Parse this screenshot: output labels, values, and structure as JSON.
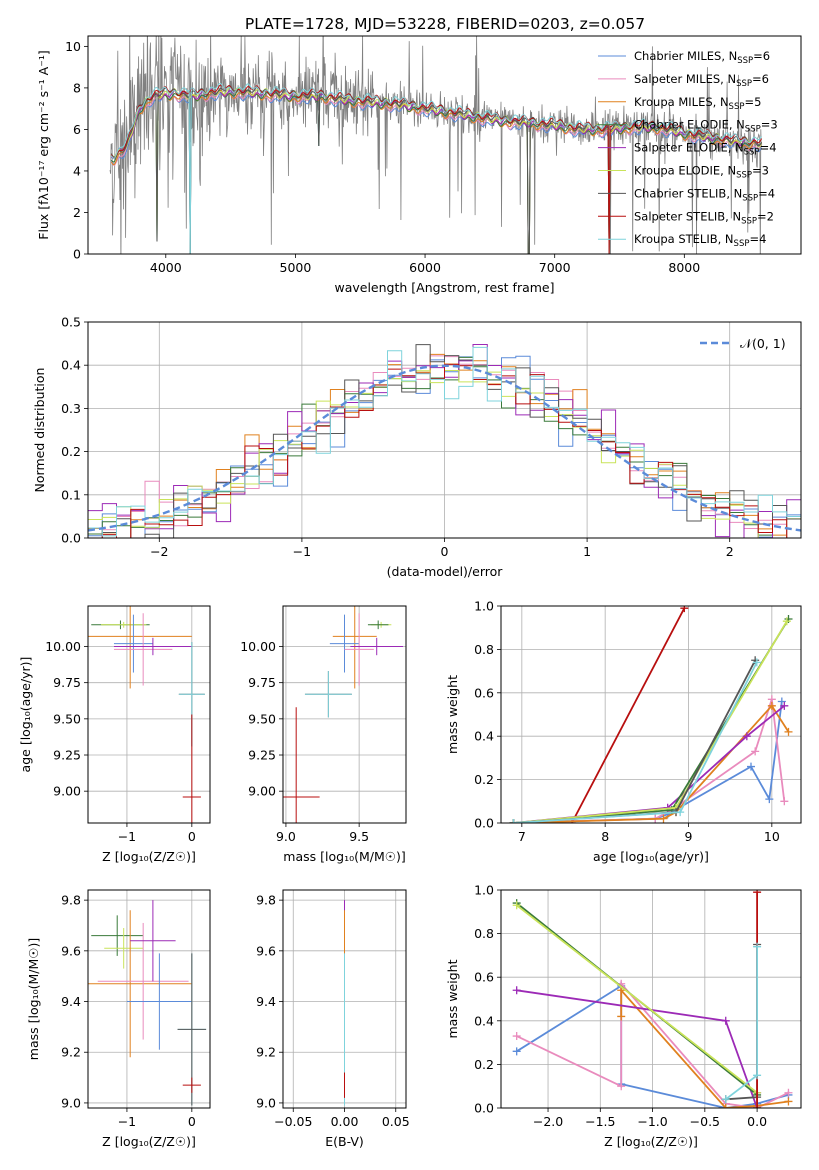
{
  "title": "PLATE=1728, MJD=53228, FIBERID=0203, z=0.057",
  "colors": {
    "Chabrier MILES": "#5b8bd9",
    "Salpeter MILES": "#e98bbd",
    "Kroupa MILES": "#e0811f",
    "Chabrier ELODIE": "#3a7a3a",
    "Salpeter ELODIE": "#9c2ab6",
    "Kroupa ELODIE": "#c9e35a",
    "Chabrier STELIB": "#555555",
    "Salpeter STELIB": "#b80f0f",
    "Kroupa STELIB": "#7fd3dc",
    "data": "#808080",
    "normal": "#5b8bd9"
  },
  "chart_data": [
    {
      "id": "spectrum",
      "type": "line",
      "title": "PLATE=1728, MJD=53228, FIBERID=0203, z=0.057",
      "xlabel": "wavelength [Angstrom, rest frame]",
      "ylabel": "Flux [fλ10⁻¹⁷ erg cm⁻² s⁻¹ A⁻¹]",
      "xlim": [
        3400,
        8900
      ],
      "ylim": [
        0,
        10.5
      ],
      "xticks": [
        4000,
        5000,
        6000,
        7000,
        8000
      ],
      "yticks": [
        0,
        2,
        4,
        6,
        8,
        10
      ],
      "legend_position": "top-right",
      "legend": [
        {
          "label": "Chabrier MILES, N",
          "sub": "SSP",
          "tail": "=6"
        },
        {
          "label": "Salpeter MILES, N",
          "sub": "SSP",
          "tail": "=6"
        },
        {
          "label": "Kroupa MILES, N",
          "sub": "SSP",
          "tail": "=5"
        },
        {
          "label": "Chabrier ELODIE, N",
          "sub": "SSP",
          "tail": "=3"
        },
        {
          "label": "Salpeter ELODIE, N",
          "sub": "SSP",
          "tail": "=4"
        },
        {
          "label": "Kroupa ELODIE, N",
          "sub": "SSP",
          "tail": "=3"
        },
        {
          "label": "Chabrier STELIB, N",
          "sub": "SSP",
          "tail": "=4"
        },
        {
          "label": "Salpeter STELIB, N",
          "sub": "SSP",
          "tail": "=2"
        },
        {
          "label": "Kroupa STELIB, N",
          "sub": "SSP",
          "tail": "=4"
        }
      ],
      "continuum_x": [
        3600,
        3700,
        3800,
        3900,
        4000,
        4100,
        4200,
        4400,
        4600,
        4800,
        5000,
        5200,
        5400,
        5600,
        5800,
        6000,
        6200,
        6400,
        6600,
        6800,
        7000,
        7200,
        7400,
        7600,
        7800,
        8000,
        8200,
        8400,
        8600
      ],
      "continuum_y": [
        4.6,
        5.2,
        7.0,
        7.6,
        7.7,
        7.7,
        7.6,
        7.8,
        7.8,
        7.7,
        7.6,
        7.6,
        7.4,
        7.3,
        7.2,
        7.0,
        6.8,
        6.6,
        6.4,
        6.3,
        6.2,
        6.0,
        6.0,
        6.1,
        6.1,
        5.8,
        5.6,
        5.4,
        5.3
      ],
      "dips": [
        [
          3930,
          0.6
        ],
        [
          4190,
          0.0
        ],
        [
          5180,
          5.2
        ],
        [
          6800,
          0.0
        ],
        [
          7420,
          0.0
        ]
      ]
    },
    {
      "id": "residuals",
      "type": "step",
      "xlabel": "(data-model)/error",
      "ylabel": "Normed distribution",
      "xlim": [
        -2.5,
        2.5
      ],
      "ylim": [
        0,
        0.5
      ],
      "xticks": [
        -2,
        -1,
        0,
        1,
        2
      ],
      "yticks": [
        0.0,
        0.1,
        0.2,
        0.3,
        0.4,
        0.5
      ],
      "legend_position": "top-right",
      "legend_label": "𝒩(0, 1)",
      "bin_width": 0.1
    },
    {
      "id": "age-vs-Z",
      "type": "errorbar",
      "xlabel": "Z [log₁₀(Z/Z☉)]",
      "ylabel": "age  [log₁₀(age/yr)]",
      "xlim": [
        -1.6,
        0.28
      ],
      "ylim": [
        8.78,
        10.28
      ],
      "xticks": [
        -1,
        0
      ],
      "yticks": [
        9.0,
        9.25,
        9.5,
        9.75,
        10.0
      ],
      "points": [
        {
          "m": "Chabrier ELODIE",
          "x": -1.1,
          "y": 10.15,
          "xerr": 0.45,
          "yerr": 0.03
        },
        {
          "m": "Kroupa ELODIE",
          "x": -1.05,
          "y": 10.15,
          "xerr": 0.35,
          "yerr": 0.02
        },
        {
          "m": "Kroupa MILES",
          "x": -0.95,
          "y": 10.07,
          "xerr": 0.95,
          "yerr": 0.36
        },
        {
          "m": "Chabrier MILES",
          "x": -0.9,
          "y": 10.02,
          "xerr": 0.3,
          "yerr": 0.2
        },
        {
          "m": "Salpeter MILES",
          "x": -0.75,
          "y": 9.98,
          "xerr": 0.45,
          "yerr": 0.25
        },
        {
          "m": "Salpeter ELODIE",
          "x": -0.6,
          "y": 10.0,
          "xerr": 0.6,
          "yerr": 0.06
        },
        {
          "m": "Chabrier STELIB",
          "x": 0.0,
          "y": 9.67,
          "xerr": 0.2,
          "yerr": 0.36
        },
        {
          "m": "Kroupa STELIB",
          "x": 0.0,
          "y": 9.67,
          "xerr": 0.2,
          "yerr": 0.36
        },
        {
          "m": "Salpeter STELIB",
          "x": 0.0,
          "y": 8.96,
          "xerr": 0.14,
          "yerr": 0.57
        }
      ]
    },
    {
      "id": "age-vs-mass",
      "type": "errorbar",
      "xlabel": "mass [log₁₀(M/M☉)]",
      "ylabel": "",
      "xlim": [
        8.98,
        9.82
      ],
      "ylim": [
        8.78,
        10.28
      ],
      "xticks": [
        9.0,
        9.5
      ],
      "yticks": [
        9.0,
        9.25,
        9.5,
        9.75,
        10.0
      ],
      "points": [
        {
          "m": "Kroupa ELODIE",
          "x": 9.65,
          "y": 10.15,
          "xerr": 0.07,
          "yerr": 0.02
        },
        {
          "m": "Chabrier ELODIE",
          "x": 9.63,
          "y": 10.15,
          "xerr": 0.07,
          "yerr": 0.03
        },
        {
          "m": "Kroupa MILES",
          "x": 9.47,
          "y": 10.07,
          "xerr": 0.15,
          "yerr": 0.36
        },
        {
          "m": "Chabrier MILES",
          "x": 9.4,
          "y": 10.02,
          "xerr": 0.1,
          "yerr": 0.2
        },
        {
          "m": "Salpeter MILES",
          "x": 9.5,
          "y": 9.98,
          "xerr": 0.1,
          "yerr": 0.25
        },
        {
          "m": "Salpeter ELODIE",
          "x": 9.62,
          "y": 10.0,
          "xerr": 0.18,
          "yerr": 0.06
        },
        {
          "m": "Chabrier STELIB",
          "x": 9.29,
          "y": 9.67,
          "xerr": 0.16,
          "yerr": 0.16
        },
        {
          "m": "Kroupa STELIB",
          "x": 9.29,
          "y": 9.67,
          "xerr": 0.16,
          "yerr": 0.16
        },
        {
          "m": "Salpeter STELIB",
          "x": 9.07,
          "y": 8.96,
          "xerr": 0.16,
          "yerr": 0.62
        }
      ]
    },
    {
      "id": "weight-vs-age",
      "type": "line",
      "xlabel": "age  [log₁₀(age/yr)]",
      "ylabel": "mass weight",
      "xlim": [
        6.75,
        10.35
      ],
      "ylim": [
        0,
        1.0
      ],
      "xticks": [
        7,
        8,
        9,
        10
      ],
      "yticks": [
        0.0,
        0.2,
        0.4,
        0.6,
        0.8,
        1.0
      ],
      "series": [
        {
          "m": "Salpeter STELIB",
          "x": [
            7.6,
            8.95
          ],
          "y": [
            0.0,
            0.99
          ]
        },
        {
          "m": "Chabrier MILES",
          "x": [
            6.9,
            8.6,
            8.75,
            9.75,
            9.97,
            10.12
          ],
          "y": [
            0.0,
            0.02,
            0.04,
            0.26,
            0.11,
            0.56
          ]
        },
        {
          "m": "Salpeter MILES",
          "x": [
            6.9,
            8.6,
            8.8,
            9.8,
            10.0,
            10.15
          ],
          "y": [
            0.0,
            0.02,
            0.06,
            0.33,
            0.57,
            0.1
          ]
        },
        {
          "m": "Kroupa MILES",
          "x": [
            6.9,
            8.7,
            8.85,
            10.0,
            10.2
          ],
          "y": [
            0.0,
            0.02,
            0.05,
            0.54,
            0.42
          ]
        },
        {
          "m": "Salpeter ELODIE",
          "x": [
            6.9,
            8.75,
            9.7,
            10.15
          ],
          "y": [
            0.0,
            0.07,
            0.4,
            0.54
          ]
        },
        {
          "m": "Chabrier ELODIE",
          "x": [
            6.9,
            8.8,
            10.2
          ],
          "y": [
            0.0,
            0.06,
            0.94
          ]
        },
        {
          "m": "Kroupa ELODIE",
          "x": [
            6.9,
            8.85,
            10.18
          ],
          "y": [
            0.0,
            0.07,
            0.93
          ]
        },
        {
          "m": "Chabrier STELIB",
          "x": [
            6.9,
            8.85,
            9.8
          ],
          "y": [
            0.0,
            0.05,
            0.75
          ]
        },
        {
          "m": "Kroupa STELIB",
          "x": [
            6.9,
            8.9,
            9.82
          ],
          "y": [
            0.0,
            0.05,
            0.74
          ]
        }
      ]
    },
    {
      "id": "mass-vs-Z",
      "type": "errorbar",
      "xlabel": "Z [log₁₀(Z/Z☉)]",
      "ylabel": "mass [log₁₀(M/M☉)]",
      "xlim": [
        -1.6,
        0.28
      ],
      "ylim": [
        8.98,
        9.84
      ],
      "xticks": [
        -1,
        0
      ],
      "yticks": [
        9.0,
        9.2,
        9.4,
        9.6,
        9.8
      ],
      "points": [
        {
          "m": "Chabrier ELODIE",
          "x": -1.15,
          "y": 9.66,
          "xerr": 0.4,
          "yerr": 0.08
        },
        {
          "m": "Kroupa ELODIE",
          "x": -1.05,
          "y": 9.61,
          "xerr": 0.3,
          "yerr": 0.08
        },
        {
          "m": "Kroupa MILES",
          "x": -0.95,
          "y": 9.47,
          "xerr": 0.95,
          "yerr": 0.29
        },
        {
          "m": "Salpeter MILES",
          "x": -0.75,
          "y": 9.48,
          "xerr": 0.7,
          "yerr": 0.23
        },
        {
          "m": "Salpeter ELODIE",
          "x": -0.6,
          "y": 9.64,
          "xerr": 0.35,
          "yerr": 0.16
        },
        {
          "m": "Chabrier MILES",
          "x": -0.5,
          "y": 9.4,
          "xerr": 0.5,
          "yerr": 0.19
        },
        {
          "m": "Kroupa STELIB",
          "x": 0.0,
          "y": 9.29,
          "xerr": 0.22,
          "yerr": 0.3
        },
        {
          "m": "Chabrier STELIB",
          "x": 0.0,
          "y": 9.29,
          "xerr": 0.22,
          "yerr": 0.3
        },
        {
          "m": "Salpeter STELIB",
          "x": 0.0,
          "y": 9.07,
          "xerr": 0.14,
          "yerr": 0.03
        }
      ]
    },
    {
      "id": "mass-vs-EBV",
      "type": "errorbar",
      "xlabel": "E(B-V)",
      "ylabel": "",
      "xlim": [
        -0.06,
        0.06
      ],
      "ylim": [
        8.98,
        9.84
      ],
      "xticks": [
        -0.05,
        0.0,
        0.05
      ],
      "yticks": [
        9.0,
        9.2,
        9.4,
        9.6,
        9.8
      ],
      "points": [
        {
          "m": "Salpeter ELODIE",
          "x": 0.0,
          "y": 9.64,
          "xerr": 0.0,
          "yerr": 0.16
        },
        {
          "m": "Kroupa ELODIE",
          "x": 0.0,
          "y": 9.61,
          "xerr": 0.0,
          "yerr": 0.08
        },
        {
          "m": "Chabrier ELODIE",
          "x": 0.0,
          "y": 9.66,
          "xerr": 0.0,
          "yerr": 0.08
        },
        {
          "m": "Kroupa MILES",
          "x": 0.0,
          "y": 9.47,
          "xerr": 0.0,
          "yerr": 0.29
        },
        {
          "m": "Chabrier MILES",
          "x": 0.0,
          "y": 9.4,
          "xerr": 0.0,
          "yerr": 0.19
        },
        {
          "m": "Kroupa STELIB",
          "x": 0.0,
          "y": 9.29,
          "xerr": 0.0,
          "yerr": 0.3
        },
        {
          "m": "Salpeter STELIB",
          "x": 0.0,
          "y": 9.07,
          "xerr": 0.0,
          "yerr": 0.05
        }
      ]
    },
    {
      "id": "weight-vs-Z",
      "type": "line",
      "xlabel": "Z [log₁₀(Z/Z☉)]",
      "ylabel": "mass weight",
      "xlim": [
        -2.45,
        0.42
      ],
      "ylim": [
        0,
        1.0
      ],
      "xticks": [
        -2.0,
        -1.5,
        -1.0,
        -0.5,
        0.0
      ],
      "yticks": [
        0.0,
        0.2,
        0.4,
        0.6,
        0.8,
        1.0
      ],
      "series": [
        {
          "m": "Chabrier MILES",
          "x": [
            -2.3,
            -1.3,
            -1.3,
            -0.3,
            0.0,
            0.3
          ],
          "y": [
            0.26,
            0.56,
            0.11,
            0.0,
            0.02,
            0.06
          ]
        },
        {
          "m": "Salpeter MILES",
          "x": [
            -2.3,
            -1.3,
            -1.3,
            -0.3,
            0.0,
            0.3
          ],
          "y": [
            0.33,
            0.1,
            0.57,
            0.02,
            0.0,
            0.07
          ]
        },
        {
          "m": "Kroupa MILES",
          "x": [
            -1.3,
            -1.3,
            -0.3,
            0.0,
            0.3
          ],
          "y": [
            0.42,
            0.54,
            0.0,
            0.01,
            0.03
          ]
        },
        {
          "m": "Salpeter ELODIE",
          "x": [
            -2.3,
            -0.3,
            0.0,
            0.0
          ],
          "y": [
            0.54,
            0.4,
            0.0,
            0.07
          ]
        },
        {
          "m": "Chabrier ELODIE",
          "x": [
            -2.3,
            0.0,
            0.0
          ],
          "y": [
            0.94,
            0.06,
            0.0
          ]
        },
        {
          "m": "Kroupa ELODIE",
          "x": [
            -2.3,
            0.0,
            0.0
          ],
          "y": [
            0.93,
            0.07,
            0.0
          ]
        },
        {
          "m": "Chabrier STELIB",
          "x": [
            -0.3,
            0.0,
            0.0
          ],
          "y": [
            0.04,
            0.05,
            0.75
          ]
        },
        {
          "m": "Salpeter STELIB",
          "x": [
            0.0,
            0.0
          ],
          "y": [
            0.0,
            0.99
          ]
        },
        {
          "m": "Kroupa STELIB",
          "x": [
            -0.3,
            0.0,
            0.0
          ],
          "y": [
            0.04,
            0.15,
            0.74
          ]
        }
      ]
    }
  ]
}
